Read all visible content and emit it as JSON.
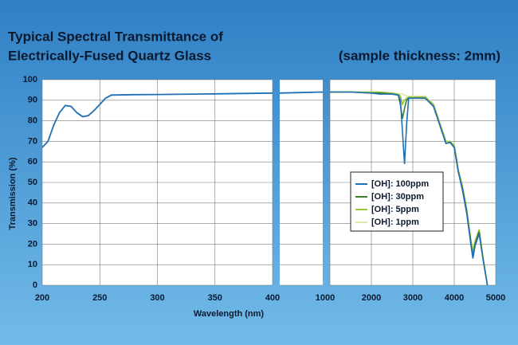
{
  "title_lines": [
    "Typical Spectral Transmittance of",
    "Electrically-Fused Quartz Glass"
  ],
  "subtitle": "(sample thickness: 2mm)",
  "x_label": "Wavelength (nm)",
  "y_label": "Transmission (%)",
  "chart_data": [
    {
      "type": "line",
      "xlim": [
        200,
        400
      ],
      "ylim": [
        0,
        100
      ],
      "xticks": [
        200,
        250,
        300,
        350,
        400
      ],
      "yticks": [
        0,
        10,
        20,
        30,
        40,
        50,
        60,
        70,
        80,
        90,
        100
      ],
      "grid": true,
      "x": [
        200,
        205,
        210,
        215,
        220,
        225,
        230,
        235,
        240,
        245,
        250,
        255,
        260,
        280,
        300,
        350,
        400
      ],
      "values": [
        67,
        70,
        78,
        84,
        87.5,
        87,
        84,
        82,
        82.5,
        85,
        88,
        91,
        92.5,
        92.7,
        92.8,
        93.1,
        93.5
      ],
      "color": "#1f6fb5"
    },
    {
      "type": "line",
      "xlim": [
        400,
        1000
      ],
      "ylim": [
        0,
        100
      ],
      "xticks": [],
      "yticks": [
        0,
        10,
        20,
        30,
        40,
        50,
        60,
        70,
        80,
        90,
        100
      ],
      "grid": true,
      "x": [
        400,
        1000
      ],
      "values": [
        93.5,
        94
      ],
      "color": "#1f6fb5"
    },
    {
      "type": "line",
      "xlim": [
        1000,
        5000
      ],
      "ylim": [
        0,
        100
      ],
      "xticks": [
        1000,
        2000,
        3000,
        4000,
        5000
      ],
      "yticks": [
        0,
        10,
        20,
        30,
        40,
        50,
        60,
        70,
        80,
        90,
        100
      ],
      "grid": true,
      "x": [
        1000,
        1500,
        2000,
        2200,
        2500,
        2650,
        2700,
        2750,
        2800,
        2850,
        2900,
        3000,
        3300,
        3500,
        3700,
        3800,
        3900,
        4000,
        4100,
        4200,
        4300,
        4400,
        4450,
        4500,
        4600,
        4700,
        4800
      ],
      "series": [
        {
          "name": "[OH]: 100ppm",
          "color": "#1f6fb5",
          "values": [
            94,
            94,
            93.5,
            93,
            93,
            92.5,
            90,
            75,
            59,
            78,
            91,
            91,
            91,
            87,
            75,
            69,
            69.5,
            67,
            55,
            46,
            35,
            20,
            13,
            19,
            25,
            12,
            0
          ]
        },
        {
          "name": "[OH]: 30ppm",
          "color": "#3a7d2c",
          "values": [
            94,
            94,
            93.5,
            93.5,
            93,
            92.5,
            88,
            81,
            86,
            90,
            91,
            91,
            91,
            87,
            75,
            69,
            69.5,
            67,
            55,
            47,
            36,
            21,
            14,
            20,
            26,
            12,
            0
          ]
        },
        {
          "name": "[OH]: 5ppm",
          "color": "#9bc53d",
          "values": [
            94,
            94,
            94,
            94,
            93.5,
            93,
            92,
            88,
            90,
            91,
            91.5,
            91.5,
            91.5,
            88,
            76,
            70,
            70,
            68,
            56,
            48,
            37,
            22,
            16,
            21,
            27,
            13,
            0
          ]
        },
        {
          "name": "[OH]: 1ppm",
          "color": "#dfe8a6",
          "values": [
            94,
            94,
            94,
            94,
            93.5,
            93,
            93,
            93,
            92.5,
            92,
            92,
            92,
            92,
            88,
            76,
            70,
            70,
            68,
            56,
            48,
            37,
            23,
            17,
            22,
            27,
            13,
            0
          ]
        }
      ]
    }
  ]
}
